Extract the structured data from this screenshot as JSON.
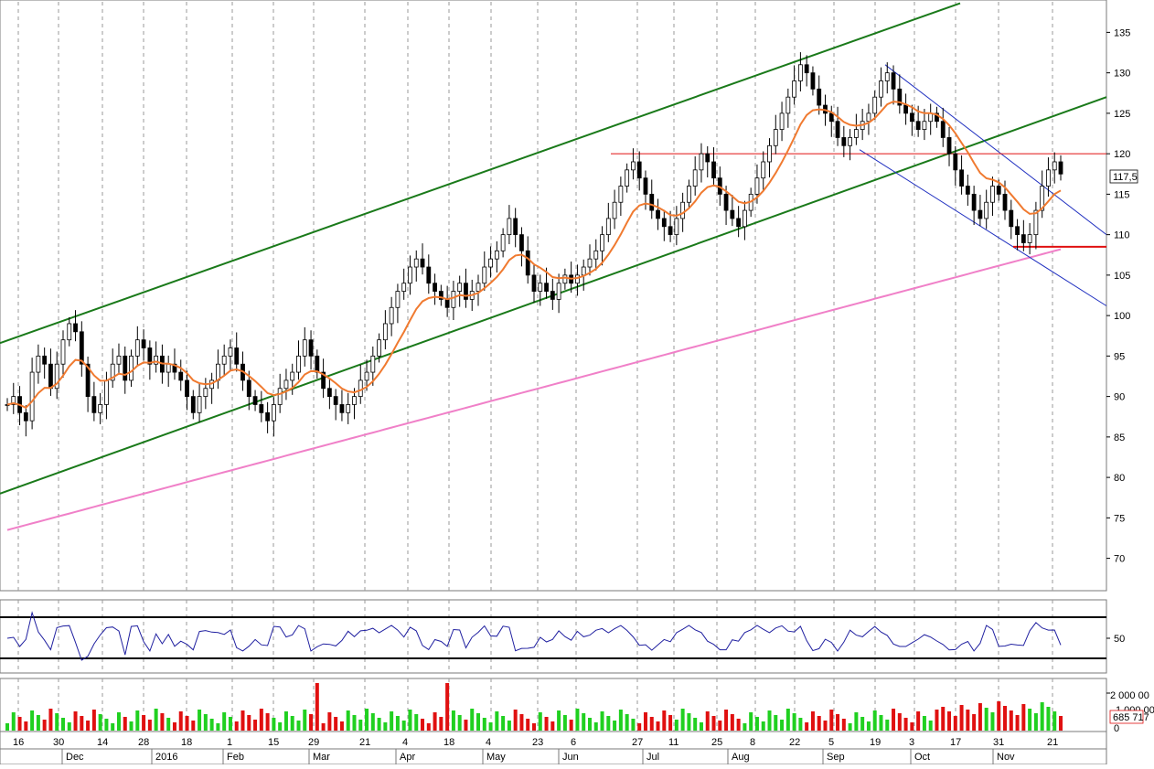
{
  "chart_data": {
    "type": "candlestick",
    "price_panel": {
      "ylim": [
        66,
        139
      ],
      "y_ticks": [
        70,
        75,
        80,
        85,
        90,
        95,
        100,
        105,
        110,
        115,
        120,
        125,
        130,
        135
      ],
      "last_price_label": "117,5",
      "last_price": 117.5,
      "ohlc_seed": [
        89,
        90,
        88,
        87,
        93,
        95,
        94,
        91,
        94,
        97,
        99,
        98,
        94,
        90,
        88,
        89,
        92,
        94,
        95,
        92,
        95,
        97,
        96,
        94,
        95,
        93,
        94,
        93,
        92,
        90,
        88,
        90,
        91,
        92,
        94,
        95,
        96,
        94,
        92,
        90,
        89,
        88,
        87,
        89,
        91,
        92,
        93,
        95,
        97,
        95,
        93,
        91,
        90,
        89,
        88,
        89,
        90,
        92,
        93,
        95,
        97,
        99,
        101,
        103,
        104,
        106,
        107,
        106,
        104,
        103,
        102,
        101,
        103,
        104,
        102,
        103,
        104,
        106,
        107,
        108,
        110,
        112,
        110,
        108,
        105,
        103,
        104,
        103,
        102,
        104,
        105,
        104,
        105,
        106,
        107,
        108,
        110,
        112,
        114,
        116,
        118,
        119,
        117,
        115,
        113,
        112,
        111,
        110,
        112,
        114,
        116,
        118,
        120,
        119,
        117,
        115,
        113,
        112,
        111,
        113,
        115,
        117,
        119,
        121,
        123,
        125,
        127,
        129,
        131,
        130,
        128,
        126,
        125,
        124,
        122,
        121,
        122,
        123,
        124,
        125,
        127,
        129,
        130,
        128,
        126,
        125,
        124,
        123,
        124,
        125,
        124,
        122,
        120,
        118,
        116,
        115,
        113,
        112,
        114,
        116,
        115,
        113,
        111,
        110,
        109,
        110,
        113,
        116,
        118,
        119,
        117.5
      ],
      "ema_short_color": "#f07a30",
      "ma_long_color": "#f080c8",
      "channel_color": "#1a7a1a",
      "downtrend_color": "#2030c0",
      "level_color": "#e01010",
      "levels": [
        120,
        108.5
      ]
    },
    "oscillator_panel": {
      "y_tick": "50",
      "line_color": "#2020a0"
    },
    "volume_panel": {
      "tick_top": "2 000 00",
      "tick_mid": "1 000 00",
      "tick_zero": "0",
      "last_volume_label": "685 717",
      "up_color": "#20d020",
      "down_color": "#e01010"
    },
    "x_axis": {
      "day_ticks": [
        "16",
        "30",
        "14",
        "28",
        "18",
        "1",
        "15",
        "29",
        "21",
        "4",
        "18",
        "4",
        "23",
        "6",
        "27",
        "11",
        "25",
        "8",
        "22",
        "5",
        "19",
        "3",
        "17",
        "31",
        "21"
      ],
      "month_ticks": [
        "Dec",
        "2016",
        "Feb",
        "Mar",
        "Apr",
        "May",
        "Jun",
        "Jul",
        "Aug",
        "Sep",
        "Oct",
        "Nov"
      ]
    }
  }
}
